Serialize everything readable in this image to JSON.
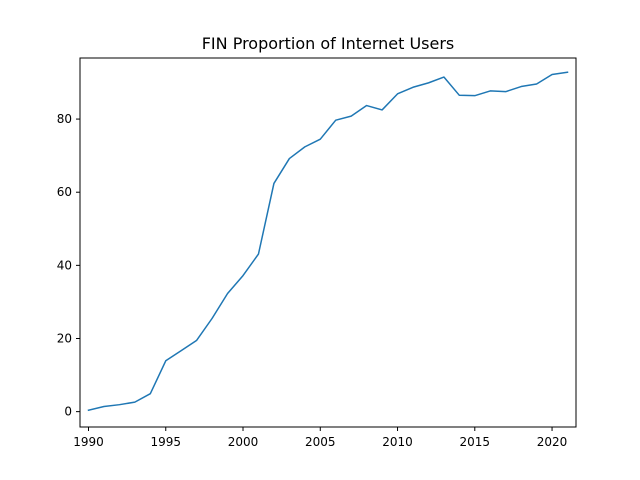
{
  "chart_data": {
    "type": "line",
    "title": "FIN Proportion of Internet Users",
    "xlabel": "",
    "ylabel": "",
    "xlim": [
      1989.45,
      2021.55
    ],
    "ylim": [
      -4.2,
      96.7
    ],
    "x_ticks": [
      1990,
      1995,
      2000,
      2005,
      2010,
      2015,
      2020
    ],
    "y_ticks": [
      0,
      20,
      40,
      60,
      80
    ],
    "grid": false,
    "line_color": "#1f77b4",
    "x": [
      1990,
      1991,
      1992,
      1993,
      1994,
      1995,
      1996,
      1997,
      1998,
      1999,
      2000,
      2001,
      2002,
      2003,
      2004,
      2005,
      2006,
      2007,
      2008,
      2009,
      2010,
      2011,
      2012,
      2013,
      2014,
      2015,
      2016,
      2017,
      2018,
      2019,
      2020,
      2021
    ],
    "series": [
      {
        "values": [
          0.4,
          1.4,
          1.9,
          2.6,
          4.9,
          13.9,
          16.7,
          19.5,
          25.5,
          32.3,
          37.2,
          43.1,
          62.4,
          69.2,
          72.4,
          74.5,
          79.7,
          80.8,
          83.7,
          82.5,
          86.9,
          88.7,
          89.9,
          91.5,
          86.5,
          86.4,
          87.7,
          87.5,
          88.9,
          89.6,
          92.2,
          92.8
        ]
      }
    ]
  }
}
